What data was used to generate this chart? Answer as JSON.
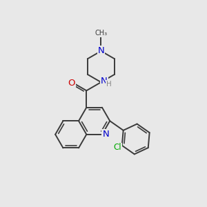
{
  "bg_color": "#e8e8e8",
  "bond_color": "#3a3a3a",
  "bond_width": 1.4,
  "atom_colors": {
    "N": "#0000cc",
    "O": "#cc0000",
    "Cl": "#00aa00",
    "C": "#3a3a3a",
    "H": "#888888"
  },
  "font_size": 8.5
}
